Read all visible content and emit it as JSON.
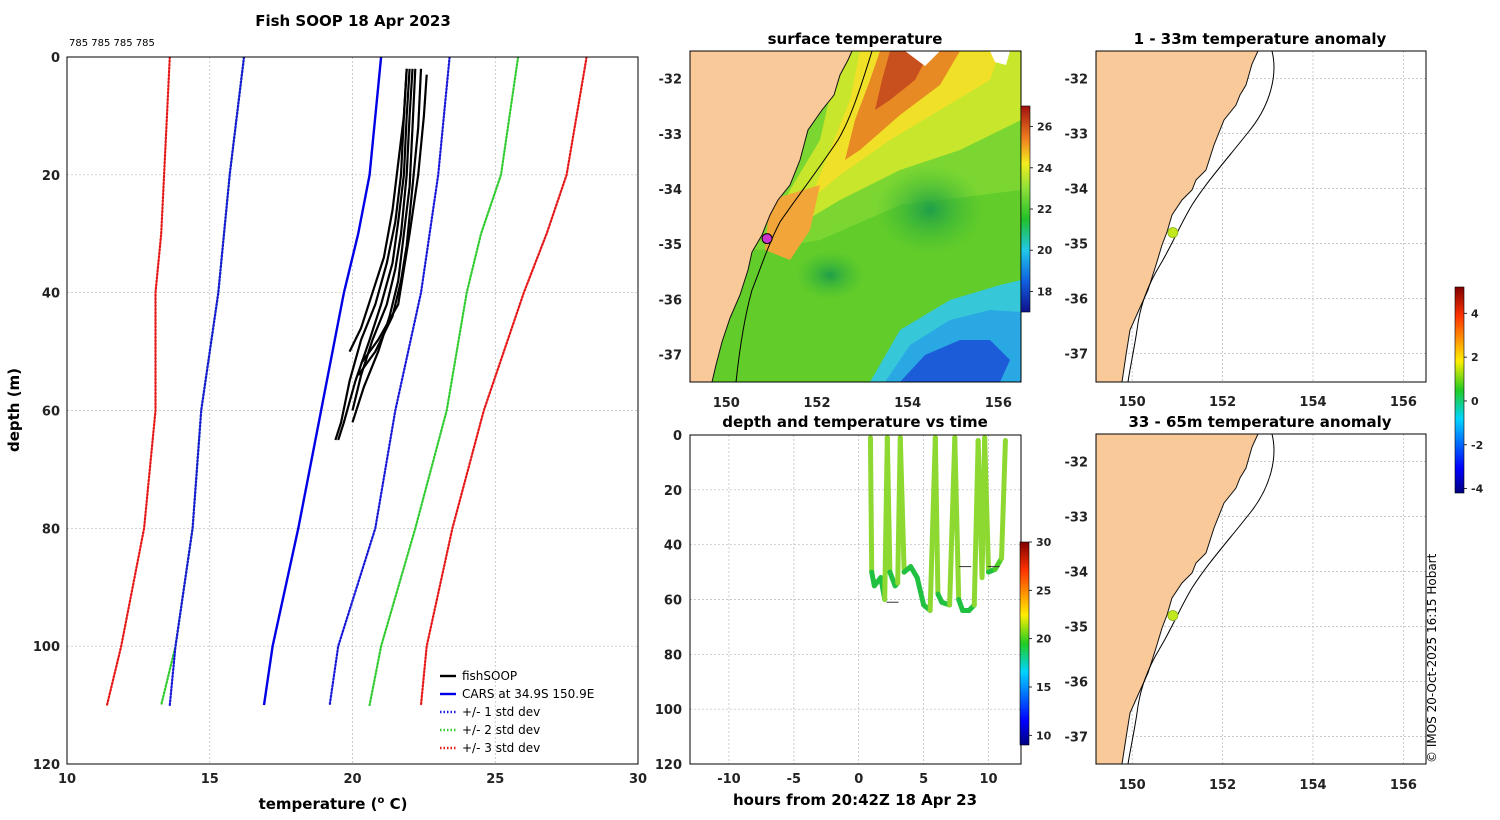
{
  "chart_data": [
    {
      "id": "profile",
      "type": "line",
      "title": "Fish SOOP 18 Apr 2023",
      "annotation": "785 785 785 785",
      "xlabel": "temperature (",
      "xlabel_sup": "o",
      "xlabel_unit": " C)",
      "ylabel": "depth (m)",
      "xlim": [
        10,
        30
      ],
      "ylim": [
        120,
        0
      ],
      "xticks": [
        10,
        15,
        20,
        25,
        30
      ],
      "yticks": [
        0,
        20,
        40,
        60,
        80,
        100,
        120
      ],
      "cars_depth": [
        0,
        20,
        30,
        40,
        60,
        80,
        100,
        110
      ],
      "series": [
        {
          "name": "fishSOOP",
          "color": "#000000",
          "style": "solid",
          "profiles": [
            {
              "depth": [
                2,
                10,
                20,
                28,
                35,
                42,
                48,
                55,
                62,
                65
              ],
              "temp": [
                21.9,
                21.8,
                21.7,
                21.5,
                21.2,
                20.8,
                20.3,
                19.9,
                19.6,
                19.4
              ]
            },
            {
              "depth": [
                2,
                10,
                20,
                28,
                35,
                42,
                48,
                55,
                62,
                65
              ],
              "temp": [
                22.0,
                21.9,
                21.8,
                21.6,
                21.4,
                21.0,
                20.6,
                20.1,
                19.7,
                19.5
              ]
            },
            {
              "depth": [
                2,
                10,
                20,
                30,
                36,
                42,
                48,
                54,
                60
              ],
              "temp": [
                22.1,
                22.0,
                21.9,
                21.7,
                21.5,
                21.2,
                20.7,
                20.3,
                20.0
              ]
            },
            {
              "depth": [
                2,
                12,
                22,
                30,
                38,
                44,
                50,
                56,
                62
              ],
              "temp": [
                22.2,
                22.1,
                22.0,
                21.8,
                21.6,
                21.3,
                20.9,
                20.4,
                20.0
              ]
            },
            {
              "depth": [
                2,
                12,
                22,
                32,
                38,
                44,
                50,
                54
              ],
              "temp": [
                22.4,
                22.3,
                22.1,
                21.9,
                21.7,
                21.4,
                20.8,
                20.2
              ]
            },
            {
              "depth": [
                3,
                10,
                20,
                30,
                36,
                42,
                48,
                52
              ],
              "temp": [
                22.6,
                22.5,
                22.3,
                22.0,
                21.8,
                21.6,
                20.9,
                20.3
              ]
            },
            {
              "depth": [
                2,
                10,
                18,
                26,
                34,
                40,
                46,
                50
              ],
              "temp": [
                21.9,
                21.8,
                21.6,
                21.4,
                21.1,
                20.7,
                20.3,
                19.9
              ]
            }
          ]
        },
        {
          "name": "CARS at 34.9S 150.9E",
          "color": "#0000e6",
          "style": "solid",
          "temp": [
            21.0,
            20.6,
            20.2,
            19.7,
            18.9,
            18.1,
            17.2,
            16.9
          ]
        },
        {
          "name": "+/- 1 std dev",
          "color": "#1a1ad9",
          "style": "dotted",
          "minus": [
            16.2,
            15.7,
            15.5,
            15.3,
            14.7,
            14.4,
            13.8,
            13.6
          ],
          "plus": [
            23.4,
            23.0,
            22.7,
            22.4,
            21.5,
            20.8,
            19.5,
            19.2
          ]
        },
        {
          "name": "+/- 2 std dev",
          "color": "#33cc33",
          "style": "dotted",
          "minus": [
            16.2,
            15.7,
            15.5,
            15.3,
            14.7,
            14.4,
            13.8,
            13.3
          ],
          "plus": [
            25.8,
            25.2,
            24.5,
            24.0,
            23.3,
            22.2,
            21.0,
            20.6
          ]
        },
        {
          "name": "+/- 3 std dev",
          "color": "#e61a1a",
          "style": "dotted",
          "minus": [
            13.6,
            13.4,
            13.3,
            13.1,
            13.1,
            12.7,
            11.9,
            11.4
          ],
          "plus": [
            28.2,
            27.5,
            26.8,
            26.0,
            24.6,
            23.5,
            22.6,
            22.4
          ]
        }
      ]
    },
    {
      "id": "sst_map",
      "type": "heatmap",
      "title": "surface temperature",
      "xlim": [
        149.2,
        156.5
      ],
      "ylim": [
        -37.5,
        -31.5
      ],
      "xticks": [
        150,
        152,
        154,
        156
      ],
      "yticks": [
        -32,
        -33,
        -34,
        -35,
        -36,
        -37
      ],
      "colorbar": {
        "min": 17,
        "max": 27,
        "ticks": [
          18,
          20,
          22,
          24,
          26
        ]
      },
      "station": {
        "lon": 150.9,
        "lat": -34.9
      }
    },
    {
      "id": "depth_time",
      "type": "scatter",
      "title": "depth and temperature vs time",
      "xlabel": "hours from 20:42Z 18 Apr 23",
      "xlim": [
        -13,
        12.5
      ],
      "ylim": [
        120,
        0
      ],
      "xticks": [
        -10,
        -5,
        0,
        5,
        10
      ],
      "yticks": [
        0,
        20,
        40,
        60,
        80,
        100,
        120
      ],
      "colorbar": {
        "min": 9,
        "max": 30,
        "ticks": [
          10,
          15,
          20,
          25,
          30
        ]
      },
      "track": {
        "hours": [
          0.9,
          1.0,
          1.2,
          1.7,
          2.0,
          2.2,
          2.4,
          2.8,
          3.0,
          3.2,
          3.5,
          4.0,
          4.5,
          5.0,
          5.5,
          5.9,
          6.1,
          6.4,
          7.0,
          7.4,
          7.7,
          8.0,
          8.5,
          8.9,
          9.2,
          9.5,
          9.7,
          10.0,
          10.5,
          11.0,
          11.3
        ],
        "depth": [
          1,
          50,
          55,
          52,
          60,
          1,
          50,
          55,
          54,
          1,
          50,
          48,
          52,
          62,
          64,
          1,
          58,
          61,
          62,
          1,
          60,
          64,
          64,
          62,
          2,
          52,
          1,
          50,
          49,
          45,
          2
        ]
      }
    },
    {
      "id": "anomaly_1_33",
      "type": "heatmap",
      "title": "1 - 33m temperature anomaly",
      "xlim": [
        149.2,
        156.5
      ],
      "ylim": [
        -37.5,
        -31.5
      ],
      "xticks": [
        150,
        152,
        154,
        156
      ],
      "yticks": [
        -32,
        -33,
        -34,
        -35,
        -36,
        -37
      ],
      "station": {
        "lon": 150.9,
        "lat": -34.8,
        "anomaly": 1.8
      }
    },
    {
      "id": "anomaly_33_65",
      "type": "heatmap",
      "title": "33 - 65m temperature anomaly",
      "xlim": [
        149.2,
        156.5
      ],
      "ylim": [
        -37.5,
        -31.5
      ],
      "xticks": [
        150,
        152,
        154,
        156
      ],
      "yticks": [
        -32,
        -33,
        -34,
        -35,
        -36,
        -37
      ],
      "station": {
        "lon": 150.9,
        "lat": -34.8,
        "anomaly": 1.8
      }
    }
  ],
  "anomaly_colorbar": {
    "min": -4.2,
    "max": 5.2,
    "ticks": [
      -4,
      -2,
      0,
      2,
      4
    ]
  },
  "credit": "© IMOS 20-Oct-2025 16:15 Hobart",
  "colors": {
    "land": "#f9c99a",
    "coast": "#111111",
    "grid": "#b8b8b8"
  }
}
